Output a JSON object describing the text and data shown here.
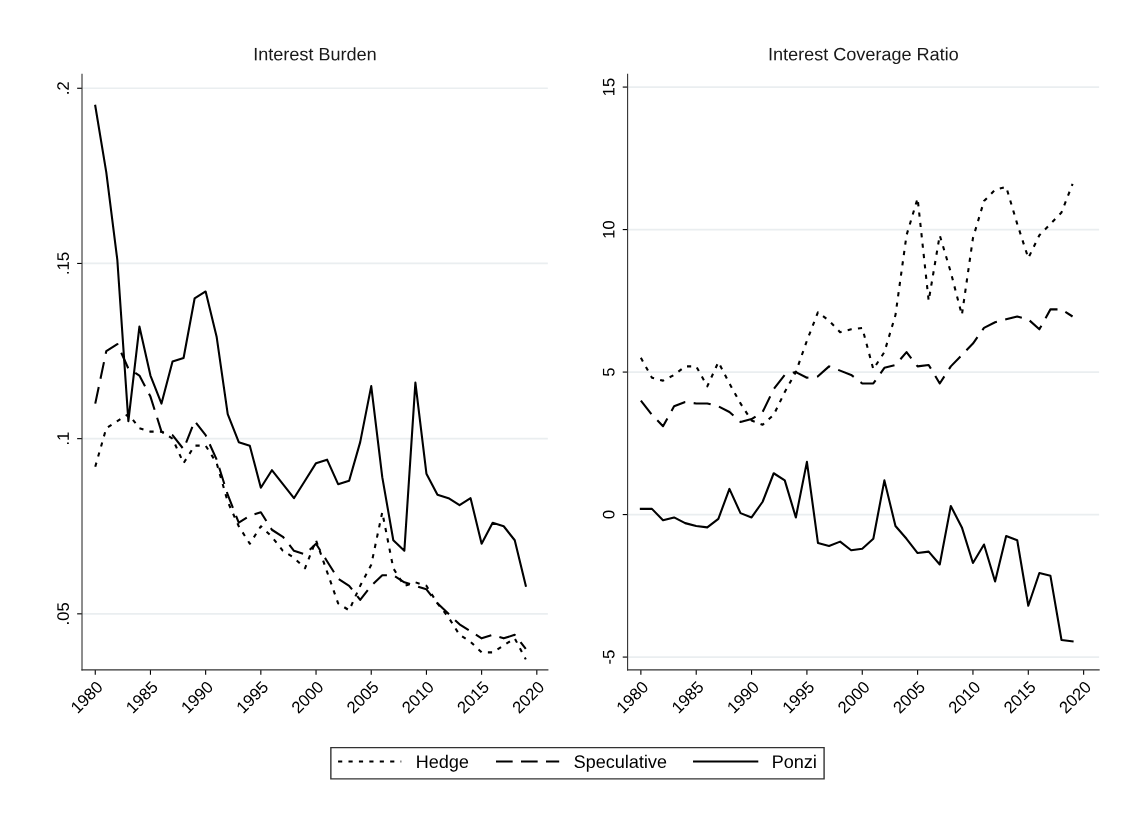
{
  "chart_data": [
    {
      "type": "line",
      "title": "Interest Burden",
      "x": [
        1980,
        1981,
        1982,
        1983,
        1984,
        1985,
        1986,
        1987,
        1988,
        1989,
        1990,
        1991,
        1992,
        1993,
        1994,
        1995,
        1996,
        1997,
        1998,
        1999,
        2000,
        2001,
        2002,
        2003,
        2004,
        2005,
        2006,
        2007,
        2008,
        2009,
        2010,
        2011,
        2012,
        2013,
        2014,
        2015,
        2016,
        2017,
        2018,
        2019
      ],
      "series": [
        {
          "name": "Hedge",
          "color": "#000000",
          "line_style": "dotted",
          "values": [
            0.092,
            0.103,
            0.105,
            0.107,
            0.103,
            0.102,
            0.102,
            0.1,
            0.093,
            0.098,
            0.098,
            0.093,
            0.082,
            0.075,
            0.07,
            0.075,
            0.072,
            0.068,
            0.066,
            0.063,
            0.071,
            0.062,
            0.053,
            0.051,
            0.058,
            0.064,
            0.079,
            0.063,
            0.058,
            0.059,
            0.058,
            0.053,
            0.049,
            0.044,
            0.042,
            0.039,
            0.039,
            0.041,
            0.043,
            0.037
          ]
        },
        {
          "name": "Speculative",
          "color": "#000000",
          "line_style": "dashed",
          "values": [
            0.11,
            0.125,
            0.127,
            0.12,
            0.118,
            0.112,
            0.102,
            0.101,
            0.097,
            0.105,
            0.101,
            0.094,
            0.084,
            0.076,
            0.078,
            0.079,
            0.074,
            0.072,
            0.068,
            0.067,
            0.07,
            0.065,
            0.06,
            0.058,
            0.054,
            0.058,
            0.061,
            0.061,
            0.059,
            0.058,
            0.057,
            0.053,
            0.05,
            0.047,
            0.045,
            0.043,
            0.044,
            0.043,
            0.044,
            0.04
          ]
        },
        {
          "name": "Ponzi",
          "color": "#000000",
          "line_style": "solid",
          "values": [
            0.195,
            0.176,
            0.151,
            0.105,
            0.132,
            0.118,
            0.11,
            0.122,
            0.123,
            0.14,
            0.142,
            0.129,
            0.107,
            0.099,
            0.098,
            0.086,
            0.091,
            0.087,
            0.083,
            0.088,
            0.093,
            0.094,
            0.087,
            0.088,
            0.099,
            0.115,
            0.089,
            0.071,
            0.068,
            0.116,
            0.09,
            0.084,
            0.083,
            0.081,
            0.083,
            0.07,
            0.076,
            0.075,
            0.071,
            0.058
          ]
        }
      ],
      "xlim": [
        1978.8,
        2021
      ],
      "xticks": [
        1980,
        1985,
        1990,
        1995,
        2000,
        2005,
        2010,
        2015,
        2020
      ],
      "ylim": [
        0.034,
        0.204
      ],
      "yticks": [
        {
          "value": 0.05,
          "label": ".05"
        },
        {
          "value": 0.1,
          "label": ".1"
        },
        {
          "value": 0.15,
          "label": ".15"
        },
        {
          "value": 0.2,
          "label": ".2"
        }
      ],
      "grid": "y",
      "legend": "bottom"
    },
    {
      "type": "line",
      "title": "Interest Coverage Ratio",
      "x": [
        1980,
        1981,
        1982,
        1983,
        1984,
        1985,
        1986,
        1987,
        1988,
        1989,
        1990,
        1991,
        1992,
        1993,
        1994,
        1995,
        1996,
        1997,
        1998,
        1999,
        2000,
        2001,
        2002,
        2003,
        2004,
        2005,
        2006,
        2007,
        2008,
        2009,
        2010,
        2011,
        2012,
        2013,
        2014,
        2015,
        2016,
        2017,
        2018,
        2019
      ],
      "series": [
        {
          "name": "Hedge",
          "color": "#000000",
          "line_style": "dotted",
          "values": [
            5.5,
            4.8,
            4.7,
            4.9,
            5.2,
            5.2,
            4.5,
            5.35,
            4.6,
            3.9,
            3.3,
            3.15,
            3.5,
            4.3,
            5.0,
            6.1,
            7.1,
            6.8,
            6.4,
            6.5,
            6.55,
            5.1,
            5.7,
            7.0,
            9.8,
            11.1,
            7.5,
            9.8,
            8.5,
            7.0,
            9.7,
            11.0,
            11.4,
            11.5,
            10.2,
            9.0,
            9.8,
            10.2,
            10.6,
            11.6
          ]
        },
        {
          "name": "Speculative",
          "color": "#000000",
          "line_style": "dashed",
          "values": [
            4.0,
            3.5,
            3.1,
            3.8,
            3.95,
            3.9,
            3.9,
            3.8,
            3.6,
            3.25,
            3.35,
            3.6,
            4.4,
            4.9,
            5.0,
            4.8,
            4.85,
            5.2,
            5.05,
            4.9,
            4.6,
            4.6,
            5.15,
            5.25,
            5.7,
            5.2,
            5.25,
            4.6,
            5.2,
            5.6,
            6.0,
            6.55,
            6.75,
            6.85,
            6.95,
            6.85,
            6.5,
            7.2,
            7.2,
            6.95
          ]
        },
        {
          "name": "Ponzi",
          "color": "#000000",
          "line_style": "solid",
          "values": [
            0.2,
            0.2,
            -0.2,
            -0.1,
            -0.3,
            -0.4,
            -0.45,
            -0.15,
            0.9,
            0.05,
            -0.1,
            0.45,
            1.45,
            1.2,
            -0.1,
            1.85,
            -1.0,
            -1.1,
            -0.95,
            -1.25,
            -1.2,
            -0.85,
            1.2,
            -0.4,
            -0.85,
            -1.35,
            -1.3,
            -1.75,
            0.3,
            -0.45,
            -1.7,
            -1.05,
            -2.35,
            -0.75,
            -0.9,
            -3.2,
            -2.05,
            -2.15,
            -4.4,
            -4.45
          ]
        }
      ],
      "xlim": [
        1978.8,
        2021.4
      ],
      "xticks": [
        1980,
        1985,
        1990,
        1995,
        2000,
        2005,
        2010,
        2015,
        2020
      ],
      "ylim": [
        -5.45,
        15.45
      ],
      "yticks": [
        {
          "value": -5,
          "label": "-5"
        },
        0,
        5,
        10,
        15
      ],
      "grid": "y",
      "legend": "bottom"
    }
  ]
}
